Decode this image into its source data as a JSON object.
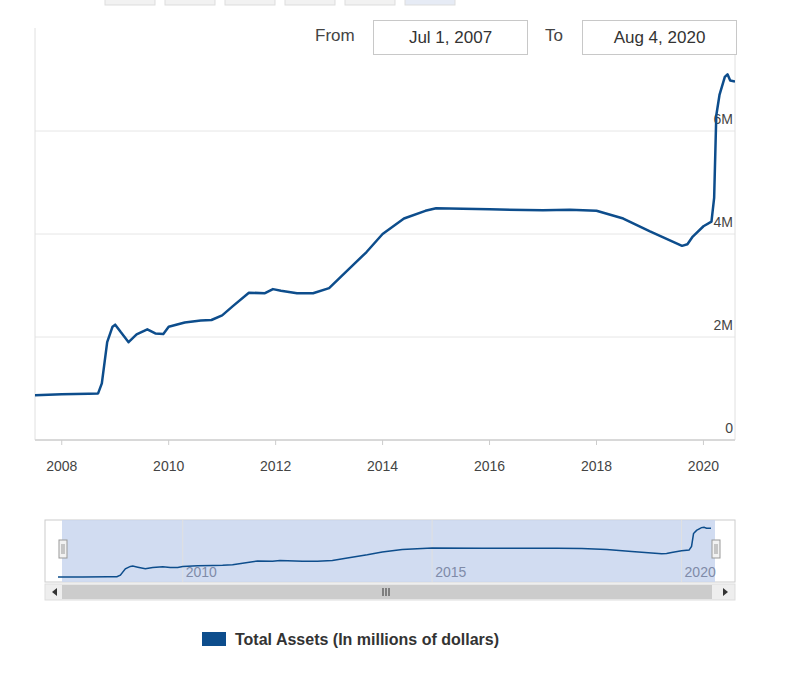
{
  "chart_data": {
    "type": "line",
    "range_from_label": "From",
    "range_from": "Jul 1, 2007",
    "range_to_label": "To",
    "range_to": "Aug 4, 2020",
    "x": [
      2007.5,
      2008.0,
      2008.5,
      2008.68,
      2008.75,
      2008.85,
      2008.95,
      2009.0,
      2009.1,
      2009.25,
      2009.4,
      2009.6,
      2009.75,
      2009.9,
      2010.0,
      2010.3,
      2010.6,
      2010.8,
      2011.0,
      2011.2,
      2011.5,
      2011.8,
      2011.95,
      2012.1,
      2012.4,
      2012.7,
      2013.0,
      2013.3,
      2013.7,
      2014.0,
      2014.4,
      2014.8,
      2015.0,
      2016.0,
      2017.0,
      2017.5,
      2018.0,
      2018.5,
      2019.0,
      2019.6,
      2019.7,
      2019.8,
      2020.0,
      2020.15,
      2020.2,
      2020.24,
      2020.3,
      2020.4,
      2020.45,
      2020.5,
      2020.59
    ],
    "series": [
      {
        "name": "Total Assets (In millions of dollars)",
        "color": "#0d4d8c",
        "values": [
          870000,
          890000,
          900000,
          905000,
          1100000,
          1900000,
          2200000,
          2240000,
          2100000,
          1900000,
          2050000,
          2150000,
          2070000,
          2060000,
          2200000,
          2280000,
          2320000,
          2330000,
          2420000,
          2600000,
          2860000,
          2850000,
          2930000,
          2900000,
          2850000,
          2850000,
          2950000,
          3250000,
          3650000,
          4000000,
          4300000,
          4450000,
          4500000,
          4480000,
          4460000,
          4470000,
          4450000,
          4300000,
          4050000,
          3770000,
          3800000,
          3950000,
          4150000,
          4240000,
          4700000,
          6300000,
          6700000,
          7050000,
          7100000,
          6980000,
          6960000
        ]
      }
    ],
    "xlim": [
      2007.5,
      2020.59
    ],
    "xticks": [
      2008,
      2010,
      2012,
      2014,
      2016,
      2018,
      2020
    ],
    "ylim": [
      0,
      8000000
    ],
    "yticks": [
      0,
      {
        "value": 2000000,
        "label": "2M"
      },
      {
        "value": 4000000,
        "label": "4M"
      },
      {
        "value": 6000000,
        "label": "6M"
      }
    ],
    "navigator_xticks": [
      2010,
      2015,
      2020
    ],
    "grid": true,
    "legend": "bottom"
  }
}
